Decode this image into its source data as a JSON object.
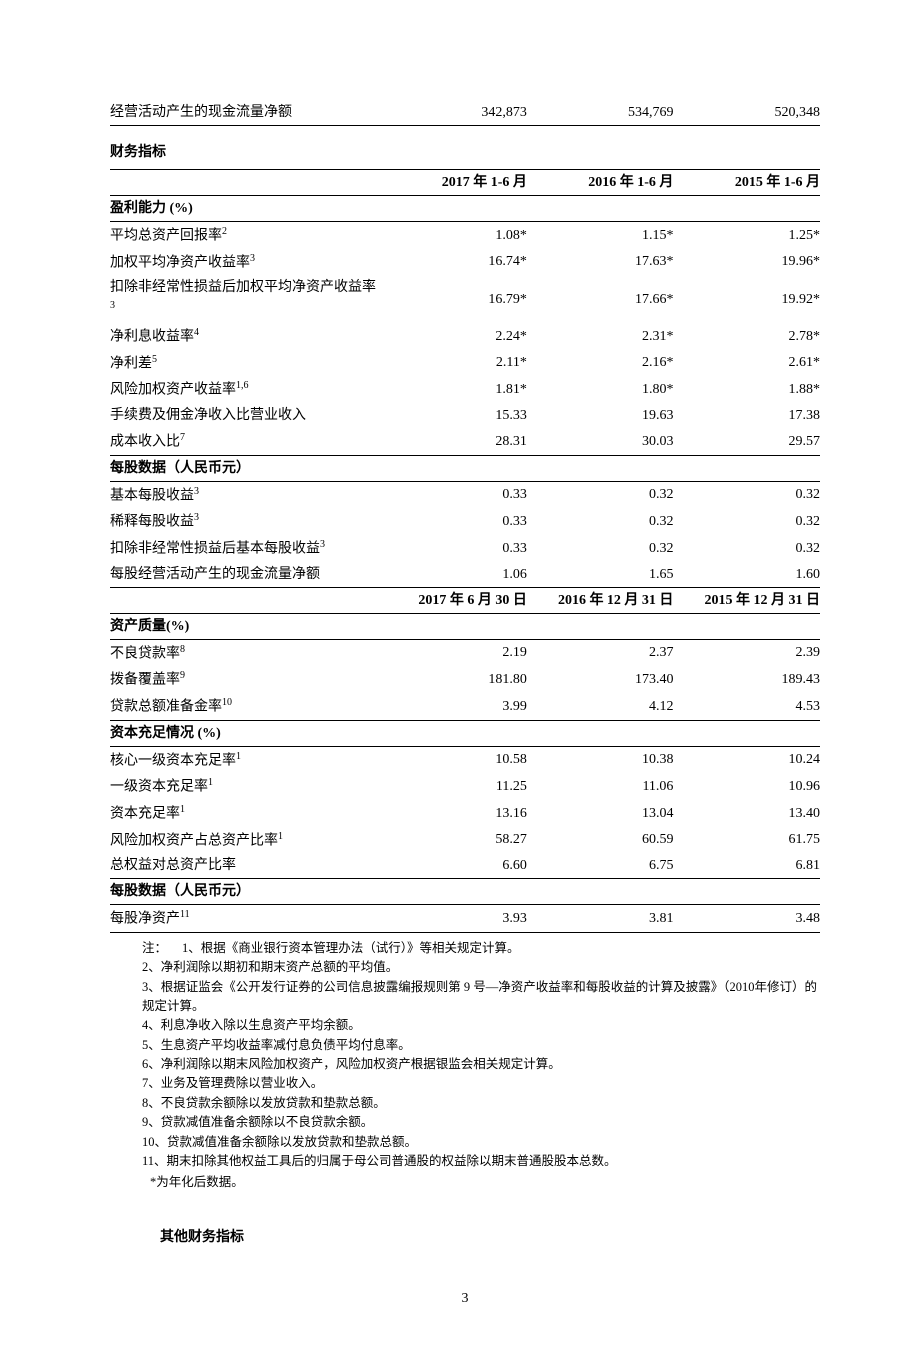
{
  "top_row": {
    "label": "经营活动产生的现金流量净额",
    "v1": "342,873",
    "v2": "534,769",
    "v3": "520,348"
  },
  "section_title": "财务指标",
  "headers1": {
    "h1": "2017 年 1-6 月",
    "h2": "2016 年 1-6 月",
    "h3": "2015 年 1-6 月"
  },
  "headers2": {
    "h1": "2017 年 6 月 30 日",
    "h2": "2016 年 12 月 31 日",
    "h3": "2015 年 12 月 31 日"
  },
  "cat1": "盈利能力 (%)",
  "r1_1": {
    "label": "平均总资产回报率",
    "sup": "2",
    "v1": "1.08*",
    "v2": "1.15*",
    "v3": "1.25*"
  },
  "r1_2": {
    "label": "加权平均净资产收益率",
    "sup": "3",
    "v1": "16.74*",
    "v2": "17.63*",
    "v3": "19.96*"
  },
  "r1_3": {
    "label": "扣除非经常性损益后加权平均净资产收益率",
    "sup": "3",
    "v1": "16.79*",
    "v2": "17.66*",
    "v3": "19.92*"
  },
  "r1_4": {
    "label": "净利息收益率",
    "sup": "4",
    "v1": "2.24*",
    "v2": "2.31*",
    "v3": "2.78*"
  },
  "r1_5": {
    "label": "净利差",
    "sup": "5",
    "v1": "2.11*",
    "v2": "2.16*",
    "v3": "2.61*"
  },
  "r1_6": {
    "label": "风险加权资产收益率",
    "sup": "1,6",
    "v1": "1.81*",
    "v2": "1.80*",
    "v3": "1.88*"
  },
  "r1_7": {
    "label": "手续费及佣金净收入比营业收入",
    "sup": "",
    "v1": "15.33",
    "v2": "19.63",
    "v3": "17.38"
  },
  "r1_8": {
    "label": "成本收入比",
    "sup": "7",
    "v1": "28.31",
    "v2": "30.03",
    "v3": "29.57"
  },
  "cat2": "每股数据（人民币元）",
  "r2_1": {
    "label": "基本每股收益",
    "sup": "3",
    "v1": "0.33",
    "v2": "0.32",
    "v3": "0.32"
  },
  "r2_2": {
    "label": "稀释每股收益",
    "sup": "3",
    "v1": "0.33",
    "v2": "0.32",
    "v3": "0.32"
  },
  "r2_3": {
    "label": "扣除非经常性损益后基本每股收益",
    "sup": "3",
    "v1": "0.33",
    "v2": "0.32",
    "v3": "0.32"
  },
  "r2_4": {
    "label": "每股经营活动产生的现金流量净额",
    "sup": "",
    "v1": "1.06",
    "v2": "1.65",
    "v3": "1.60"
  },
  "cat3": "资产质量(%)",
  "r3_1": {
    "label": "不良贷款率",
    "sup": "8",
    "v1": "2.19",
    "v2": "2.37",
    "v3": "2.39"
  },
  "r3_2": {
    "label": "拨备覆盖率",
    "sup": "9",
    "v1": "181.80",
    "v2": "173.40",
    "v3": "189.43"
  },
  "r3_3": {
    "label": "贷款总额准备金率",
    "sup": "10",
    "v1": "3.99",
    "v2": "4.12",
    "v3": "4.53"
  },
  "cat4": "资本充足情况 (%)",
  "r4_1": {
    "label": "核心一级资本充足率",
    "sup": "1",
    "v1": "10.58",
    "v2": "10.38",
    "v3": "10.24"
  },
  "r4_2": {
    "label": "一级资本充足率",
    "sup": "1",
    "v1": "11.25",
    "v2": "11.06",
    "v3": "10.96"
  },
  "r4_3": {
    "label": "资本充足率",
    "sup": "1",
    "v1": "13.16",
    "v2": "13.04",
    "v3": "13.40"
  },
  "r4_4": {
    "label": "风险加权资产占总资产比率",
    "sup": "1",
    "v1": "58.27",
    "v2": "60.59",
    "v3": "61.75"
  },
  "r4_5": {
    "label": "总权益对总资产比率",
    "sup": "",
    "v1": "6.60",
    "v2": "6.75",
    "v3": "6.81"
  },
  "cat5": "每股数据（人民币元）",
  "r5_1": {
    "label": "每股净资产",
    "sup": "11",
    "v1": "3.93",
    "v2": "3.81",
    "v3": "3.48"
  },
  "notes": {
    "label": "注：",
    "n1": "1、根据《商业银行资本管理办法（试行）》等相关规定计算。",
    "n2": "2、净利润除以期初和期末资产总额的平均值。",
    "n3": "3、根据证监会《公开发行证券的公司信息披露编报规则第 9 号—净资产收益率和每股收益的计算及披露》（2010年修订）的规定计算。",
    "n4": "4、利息净收入除以生息资产平均余额。",
    "n5": "5、生息资产平均收益率减付息负债平均付息率。",
    "n6": "6、净利润除以期末风险加权资产，风险加权资产根据银监会相关规定计算。",
    "n7": "7、业务及管理费除以营业收入。",
    "n8": "8、不良贷款余额除以发放贷款和垫款总额。",
    "n9": "9、贷款减值准备余额除以不良贷款余额。",
    "n10": "10、贷款减值准备余额除以发放贷款和垫款总额。",
    "n11": "11、期末扣除其他权益工具后的归属于母公司普通股的权益除以期末普通股股本总数。",
    "asterisk": "*为年化后数据。"
  },
  "other_title": "其他财务指标",
  "page_num": "3"
}
